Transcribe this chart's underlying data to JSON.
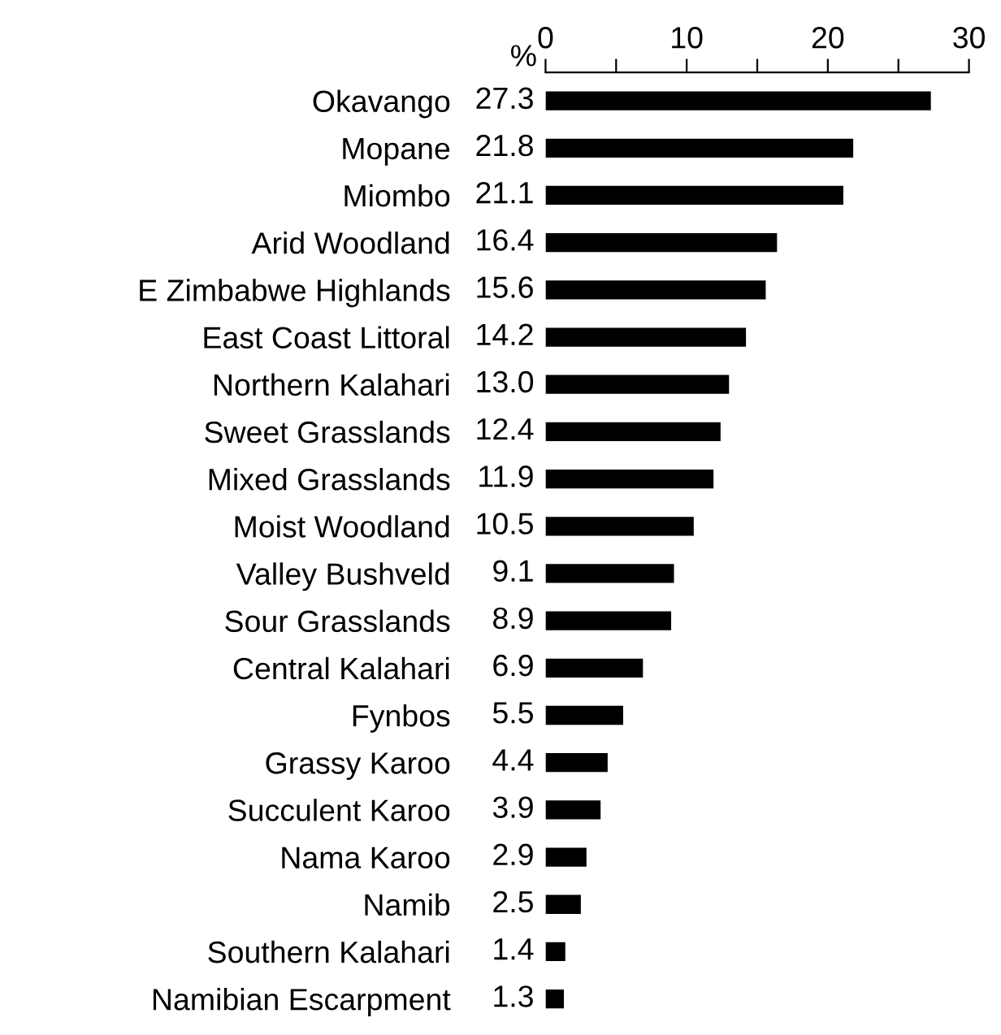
{
  "chart_data": {
    "type": "bar",
    "orientation": "horizontal",
    "xlabel": "%",
    "categories": [
      "Okavango",
      "Mopane",
      "Miombo",
      "Arid Woodland",
      "E Zimbabwe Highlands",
      "East Coast Littoral",
      "Northern Kalahari",
      "Sweet Grasslands",
      "Mixed Grasslands",
      "Moist Woodland",
      "Valley Bushveld",
      "Sour Grasslands",
      "Central Kalahari",
      "Fynbos",
      "Grassy Karoo",
      "Succulent Karoo",
      "Nama Karoo",
      "Namib",
      "Southern Kalahari",
      "Namibian Escarpment"
    ],
    "values": [
      27.3,
      21.8,
      21.1,
      16.4,
      15.6,
      14.2,
      13.0,
      12.4,
      11.9,
      10.5,
      9.1,
      8.9,
      6.9,
      5.5,
      4.4,
      3.9,
      2.9,
      2.5,
      1.4,
      1.3
    ],
    "value_labels": [
      "27.3",
      "21.8",
      "21.1",
      "16.4",
      "15.6",
      "14.2",
      "13.0",
      "12.4",
      "11.9",
      "10.5",
      "9.1",
      "8.9",
      "6.9",
      "5.5",
      "4.4",
      "3.9",
      "2.9",
      "2.5",
      "1.4",
      "1.3"
    ],
    "color": "#000000",
    "xlim": [
      0,
      30
    ],
    "xticks": [
      0,
      {
        "value": 5,
        "label": null
      },
      10,
      {
        "value": 15,
        "label": null
      },
      20,
      {
        "value": 25,
        "label": null
      },
      30
    ],
    "grid": false,
    "legend": false
  }
}
